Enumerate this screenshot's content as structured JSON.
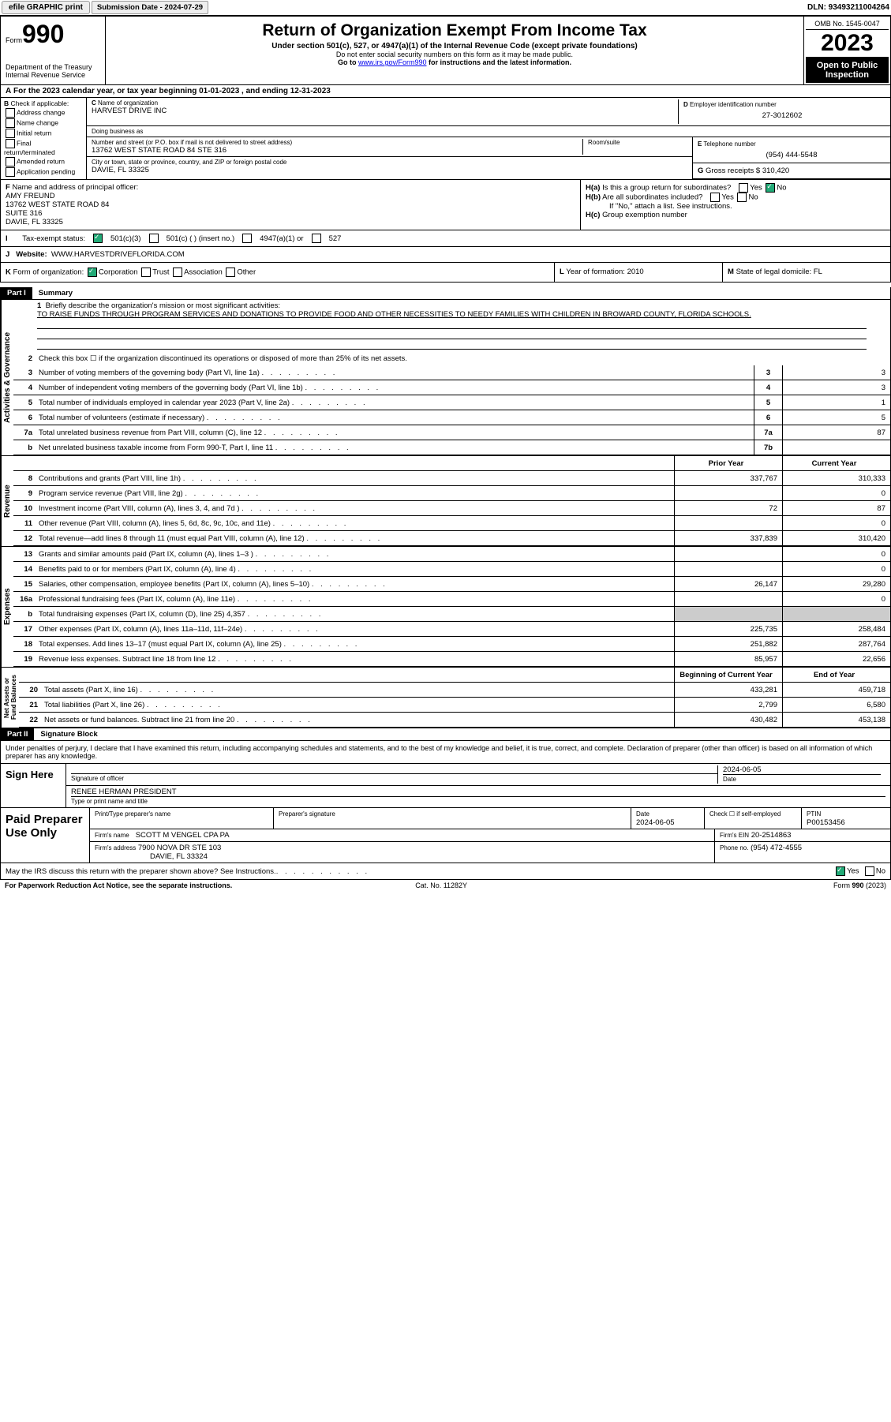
{
  "topbar": {
    "efile": "efile GRAPHIC print",
    "submission": "Submission Date - 2024-07-29",
    "dln": "DLN: 93493211004264"
  },
  "header": {
    "form_label": "Form",
    "form_num": "990",
    "title": "Return of Organization Exempt From Income Tax",
    "sub": "Under section 501(c), 527, or 4947(a)(1) of the Internal Revenue Code (except private foundations)",
    "ssn": "Do not enter social security numbers on this form as it may be made public.",
    "goto": "Go to ",
    "goto_link": "www.irs.gov/Form990",
    "goto_after": " for instructions and the latest information.",
    "dept": "Department of the Treasury",
    "irs": "Internal Revenue Service",
    "omb": "OMB No. 1545-0047",
    "year": "2023",
    "open": "Open to Public Inspection"
  },
  "A": {
    "text": "For the 2023 calendar year, or tax year beginning 01-01-2023   , and ending 12-31-2023"
  },
  "B": {
    "title": "Check if applicable:",
    "items": [
      "Address change",
      "Name change",
      "Initial return",
      "Final return/terminated",
      "Amended return",
      "Application pending"
    ]
  },
  "C": {
    "label": "Name of organization",
    "name": "HARVEST DRIVE INC",
    "dba_label": "Doing business as",
    "dba": "",
    "street_label": "Number and street (or P.O. box if mail is not delivered to street address)",
    "street": "13762 WEST STATE ROAD 84 STE 316",
    "room_label": "Room/suite",
    "room": "",
    "city_label": "City or town, state or province, country, and ZIP or foreign postal code",
    "city": "DAVIE, FL  33325"
  },
  "D": {
    "label": "Employer identification number",
    "val": "27-3012602"
  },
  "E": {
    "label": "Telephone number",
    "val": "(954) 444-5548"
  },
  "G": {
    "label": "Gross receipts $",
    "val": "310,420"
  },
  "F": {
    "label": "Name and address of principal officer:",
    "name": "AMY FREUND",
    "addr1": "13762 WEST STATE ROAD 84",
    "addr2": "SUITE 316",
    "addr3": "DAVIE, FL  33325"
  },
  "H": {
    "a": "Is this a group return for subordinates?",
    "a_no": true,
    "b": "Are all subordinates included?",
    "b_note": "If \"No,\" attach a list. See instructions.",
    "c": "Group exemption number"
  },
  "I": {
    "label": "Tax-exempt status:",
    "c501c3": true,
    "opts": [
      "501(c)(3)",
      "501(c) (  ) (insert no.)",
      "4947(a)(1) or",
      "527"
    ]
  },
  "J": {
    "label": "Website:",
    "val": "WWW.HARVESTDRIVEFLORIDA.COM"
  },
  "K": {
    "label": "Form of organization:",
    "corp": true,
    "opts": [
      "Corporation",
      "Trust",
      "Association",
      "Other"
    ]
  },
  "L": {
    "label": "Year of formation:",
    "val": "2010"
  },
  "M": {
    "label": "State of legal domicile:",
    "val": "FL"
  },
  "partI": {
    "title": "Summary",
    "l1": "Briefly describe the organization's mission or most significant activities:",
    "mission": "TO RAISE FUNDS THROUGH PROGRAM SERVICES AND DONATIONS TO PROVIDE FOOD AND OTHER NECESSITIES TO NEEDY FAMILIES WITH CHILDREN IN BROWARD COUNTY, FLORIDA SCHOOLS.",
    "l2": "Check this box ☐ if the organization discontinued its operations or disposed of more than 25% of its net assets.",
    "lines": [
      {
        "n": "3",
        "t": "Number of voting members of the governing body (Part VI, line 1a)",
        "box": "3",
        "v": "3"
      },
      {
        "n": "4",
        "t": "Number of independent voting members of the governing body (Part VI, line 1b)",
        "box": "4",
        "v": "3"
      },
      {
        "n": "5",
        "t": "Total number of individuals employed in calendar year 2023 (Part V, line 2a)",
        "box": "5",
        "v": "1"
      },
      {
        "n": "6",
        "t": "Total number of volunteers (estimate if necessary)",
        "box": "6",
        "v": "5"
      },
      {
        "n": "7a",
        "t": "Total unrelated business revenue from Part VIII, column (C), line 12",
        "box": "7a",
        "v": "87"
      },
      {
        "n": "b",
        "t": "Net unrelated business taxable income from Form 990-T, Part I, line 11",
        "box": "7b",
        "v": ""
      }
    ],
    "col_prior": "Prior Year",
    "col_curr": "Current Year",
    "revenue": [
      {
        "n": "8",
        "t": "Contributions and grants (Part VIII, line 1h)",
        "p": "337,767",
        "c": "310,333"
      },
      {
        "n": "9",
        "t": "Program service revenue (Part VIII, line 2g)",
        "p": "",
        "c": "0"
      },
      {
        "n": "10",
        "t": "Investment income (Part VIII, column (A), lines 3, 4, and 7d )",
        "p": "72",
        "c": "87"
      },
      {
        "n": "11",
        "t": "Other revenue (Part VIII, column (A), lines 5, 6d, 8c, 9c, 10c, and 11e)",
        "p": "",
        "c": "0"
      },
      {
        "n": "12",
        "t": "Total revenue—add lines 8 through 11 (must equal Part VIII, column (A), line 12)",
        "p": "337,839",
        "c": "310,420"
      }
    ],
    "expenses": [
      {
        "n": "13",
        "t": "Grants and similar amounts paid (Part IX, column (A), lines 1–3 )",
        "p": "",
        "c": "0"
      },
      {
        "n": "14",
        "t": "Benefits paid to or for members (Part IX, column (A), line 4)",
        "p": "",
        "c": "0"
      },
      {
        "n": "15",
        "t": "Salaries, other compensation, employee benefits (Part IX, column (A), lines 5–10)",
        "p": "26,147",
        "c": "29,280"
      },
      {
        "n": "16a",
        "t": "Professional fundraising fees (Part IX, column (A), line 11e)",
        "p": "",
        "c": "0"
      },
      {
        "n": "b",
        "t": "Total fundraising expenses (Part IX, column (D), line 25) 4,357",
        "p": "grey",
        "c": "grey"
      },
      {
        "n": "17",
        "t": "Other expenses (Part IX, column (A), lines 11a–11d, 11f–24e)",
        "p": "225,735",
        "c": "258,484"
      },
      {
        "n": "18",
        "t": "Total expenses. Add lines 13–17 (must equal Part IX, column (A), line 25)",
        "p": "251,882",
        "c": "287,764"
      },
      {
        "n": "19",
        "t": "Revenue less expenses. Subtract line 18 from line 12",
        "p": "85,957",
        "c": "22,656"
      }
    ],
    "col_begin": "Beginning of Current Year",
    "col_end": "End of Year",
    "netassets": [
      {
        "n": "20",
        "t": "Total assets (Part X, line 16)",
        "p": "433,281",
        "c": "459,718"
      },
      {
        "n": "21",
        "t": "Total liabilities (Part X, line 26)",
        "p": "2,799",
        "c": "6,580"
      },
      {
        "n": "22",
        "t": "Net assets or fund balances. Subtract line 21 from line 20",
        "p": "430,482",
        "c": "453,138"
      }
    ]
  },
  "partII": {
    "title": "Signature Block",
    "perjury": "Under penalties of perjury, I declare that I have examined this return, including accompanying schedules and statements, and to the best of my knowledge and belief, it is true, correct, and complete. Declaration of preparer (other than officer) is based on all information of which preparer has any knowledge.",
    "sign_here": "Sign Here",
    "sig_officer": "Signature of officer",
    "sig_date": "2024-06-05",
    "date_label": "Date",
    "sig_name": "RENEE HERMAN PRESIDENT",
    "sig_name_label": "Type or print name and title",
    "paid": "Paid Preparer Use Only",
    "prep_name_label": "Print/Type preparer's name",
    "prep_sig_label": "Preparer's signature",
    "prep_date": "2024-06-05",
    "check_self": "Check ☐ if self-employed",
    "ptin_label": "PTIN",
    "ptin": "P00153456",
    "firm_name_label": "Firm's name",
    "firm_name": "SCOTT M VENGEL CPA PA",
    "firm_ein_label": "Firm's EIN",
    "firm_ein": "20-2514863",
    "firm_addr_label": "Firm's address",
    "firm_addr": "7900 NOVA DR STE 103",
    "firm_city": "DAVIE, FL  33324",
    "phone_label": "Phone no.",
    "phone": "(954) 472-4555",
    "discuss": "May the IRS discuss this return with the preparer shown above? See Instructions.",
    "discuss_yes": true
  },
  "footer": {
    "pra": "For Paperwork Reduction Act Notice, see the separate instructions.",
    "cat": "Cat. No. 11282Y",
    "form": "Form 990 (2023)"
  }
}
